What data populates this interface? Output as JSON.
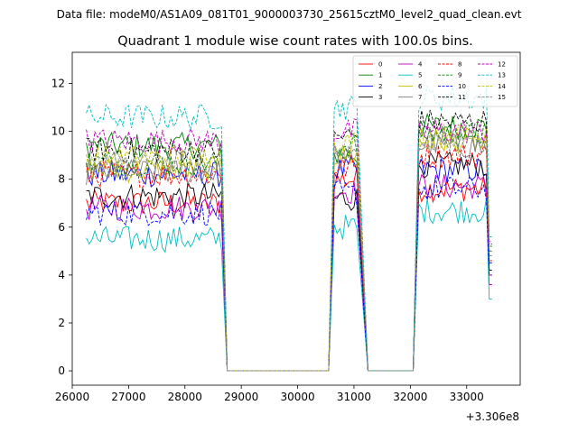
{
  "chart_data": {
    "type": "line",
    "suptitle": "Data file: modeM0/AS1A09_081T01_9000003730_25615cztM0_level2_quad_clean.evt",
    "title": "Quadrant 1 module wise count rates with 100.0s bins.",
    "xlabel": "",
    "ylabel": "",
    "x_offset_label": "+3.306e8",
    "xlim": [
      26000,
      33950
    ],
    "ylim": [
      -0.6,
      13.3
    ],
    "xticks": [
      26000,
      27000,
      28000,
      29000,
      30000,
      31000,
      32000,
      33000
    ],
    "yticks": [
      0,
      2,
      4,
      6,
      8,
      10,
      12
    ],
    "legend_position": "top-right",
    "segments": [
      {
        "x_start": 26250,
        "x_end": 28650
      },
      {
        "x_start": 30650,
        "x_end": 31050
      },
      {
        "x_start": 32150,
        "x_end": 33450
      }
    ],
    "gaps": [
      {
        "x_from": 28650,
        "x_to": 28750,
        "x_flat_start": 28750,
        "x_flat_end": 30550,
        "x_back": 30650
      },
      {
        "x_from": 31050,
        "x_to": 31250,
        "x_flat_start": 31250,
        "x_flat_end": 32050,
        "x_back": 32150
      }
    ],
    "series": [
      {
        "name": "0",
        "color": "#ff0000",
        "dash": "solid",
        "levels": [
          7.0,
          8.0,
          7.6
        ],
        "drop_end": 4.0
      },
      {
        "name": "1",
        "color": "#008000",
        "dash": "solid",
        "levels": [
          9.4,
          9.0,
          10.2
        ],
        "drop_end": 5.2
      },
      {
        "name": "2",
        "color": "#0000ff",
        "dash": "solid",
        "levels": [
          8.2,
          8.4,
          8.4
        ],
        "drop_end": 4.5
      },
      {
        "name": "3",
        "color": "#000000",
        "dash": "solid",
        "levels": [
          7.3,
          7.2,
          8.6
        ],
        "drop_end": 4.2
      },
      {
        "name": "4",
        "color": "#bf00bf",
        "dash": "solid",
        "levels": [
          6.8,
          7.5,
          7.7
        ],
        "drop_end": 3.6
      },
      {
        "name": "5",
        "color": "#00bfbf",
        "dash": "solid",
        "levels": [
          5.5,
          6.0,
          6.7
        ],
        "drop_end": 3.0
      },
      {
        "name": "6",
        "color": "#bfbf00",
        "dash": "solid",
        "levels": [
          8.4,
          9.0,
          9.6
        ],
        "drop_end": 5.0
      },
      {
        "name": "7",
        "color": "#808080",
        "dash": "solid",
        "levels": [
          8.3,
          8.8,
          9.4
        ],
        "drop_end": 4.8
      },
      {
        "name": "8",
        "color": "#ff0000",
        "dash": "dashed",
        "levels": [
          8.2,
          8.5,
          9.0
        ],
        "drop_end": 4.6
      },
      {
        "name": "9",
        "color": "#008000",
        "dash": "dashed",
        "levels": [
          8.7,
          9.4,
          9.9
        ],
        "drop_end": 5.0
      },
      {
        "name": "10",
        "color": "#0000ff",
        "dash": "dashed",
        "levels": [
          6.6,
          7.4,
          7.6
        ],
        "drop_end": 4.0
      },
      {
        "name": "11",
        "color": "#000000",
        "dash": "dashed",
        "levels": [
          9.2,
          9.8,
          10.4
        ],
        "drop_end": 5.3
      },
      {
        "name": "12",
        "color": "#bf00bf",
        "dash": "dashed",
        "levels": [
          9.6,
          10.0,
          10.0
        ],
        "drop_end": 5.4
      },
      {
        "name": "13",
        "color": "#00bfbf",
        "dash": "dashed",
        "levels": [
          10.6,
          11.0,
          11.4
        ],
        "drop_end": 5.6
      },
      {
        "name": "14",
        "color": "#bfbf00",
        "dash": "dashed",
        "levels": [
          8.9,
          9.5,
          9.8
        ],
        "drop_end": 5.2
      },
      {
        "name": "15",
        "color": "#808080",
        "dash": "dashed",
        "levels": [
          8.6,
          9.2,
          9.6
        ],
        "drop_end": 5.0
      }
    ]
  }
}
